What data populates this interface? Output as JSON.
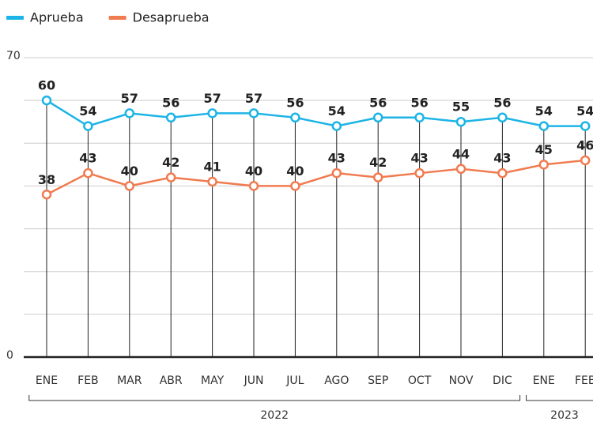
{
  "chart_data": {
    "type": "line",
    "categories": [
      "ENE",
      "FEB",
      "MAR",
      "ABR",
      "MAY",
      "JUN",
      "JUL",
      "AGO",
      "SEP",
      "OCT",
      "NOV",
      "DIC",
      "ENE",
      "FEB"
    ],
    "year_groups": [
      {
        "label": "2022",
        "start": 0,
        "end": 11
      },
      {
        "label": "2023",
        "start": 12,
        "end": 13
      }
    ],
    "series": [
      {
        "name": "Aprueba",
        "color": "#1cb4e6",
        "values": [
          60,
          54,
          57,
          56,
          57,
          57,
          56,
          54,
          56,
          56,
          55,
          56,
          54,
          54
        ]
      },
      {
        "name": "Desaprueba",
        "color": "#f07b50",
        "values": [
          38,
          43,
          40,
          42,
          41,
          40,
          40,
          43,
          42,
          43,
          44,
          43,
          45,
          46
        ]
      }
    ],
    "ylim": [
      0,
      70
    ],
    "yticks": [
      0,
      70
    ],
    "ygrid": [
      0,
      10,
      20,
      30,
      40,
      50,
      60,
      70
    ],
    "legend": "top-left"
  }
}
